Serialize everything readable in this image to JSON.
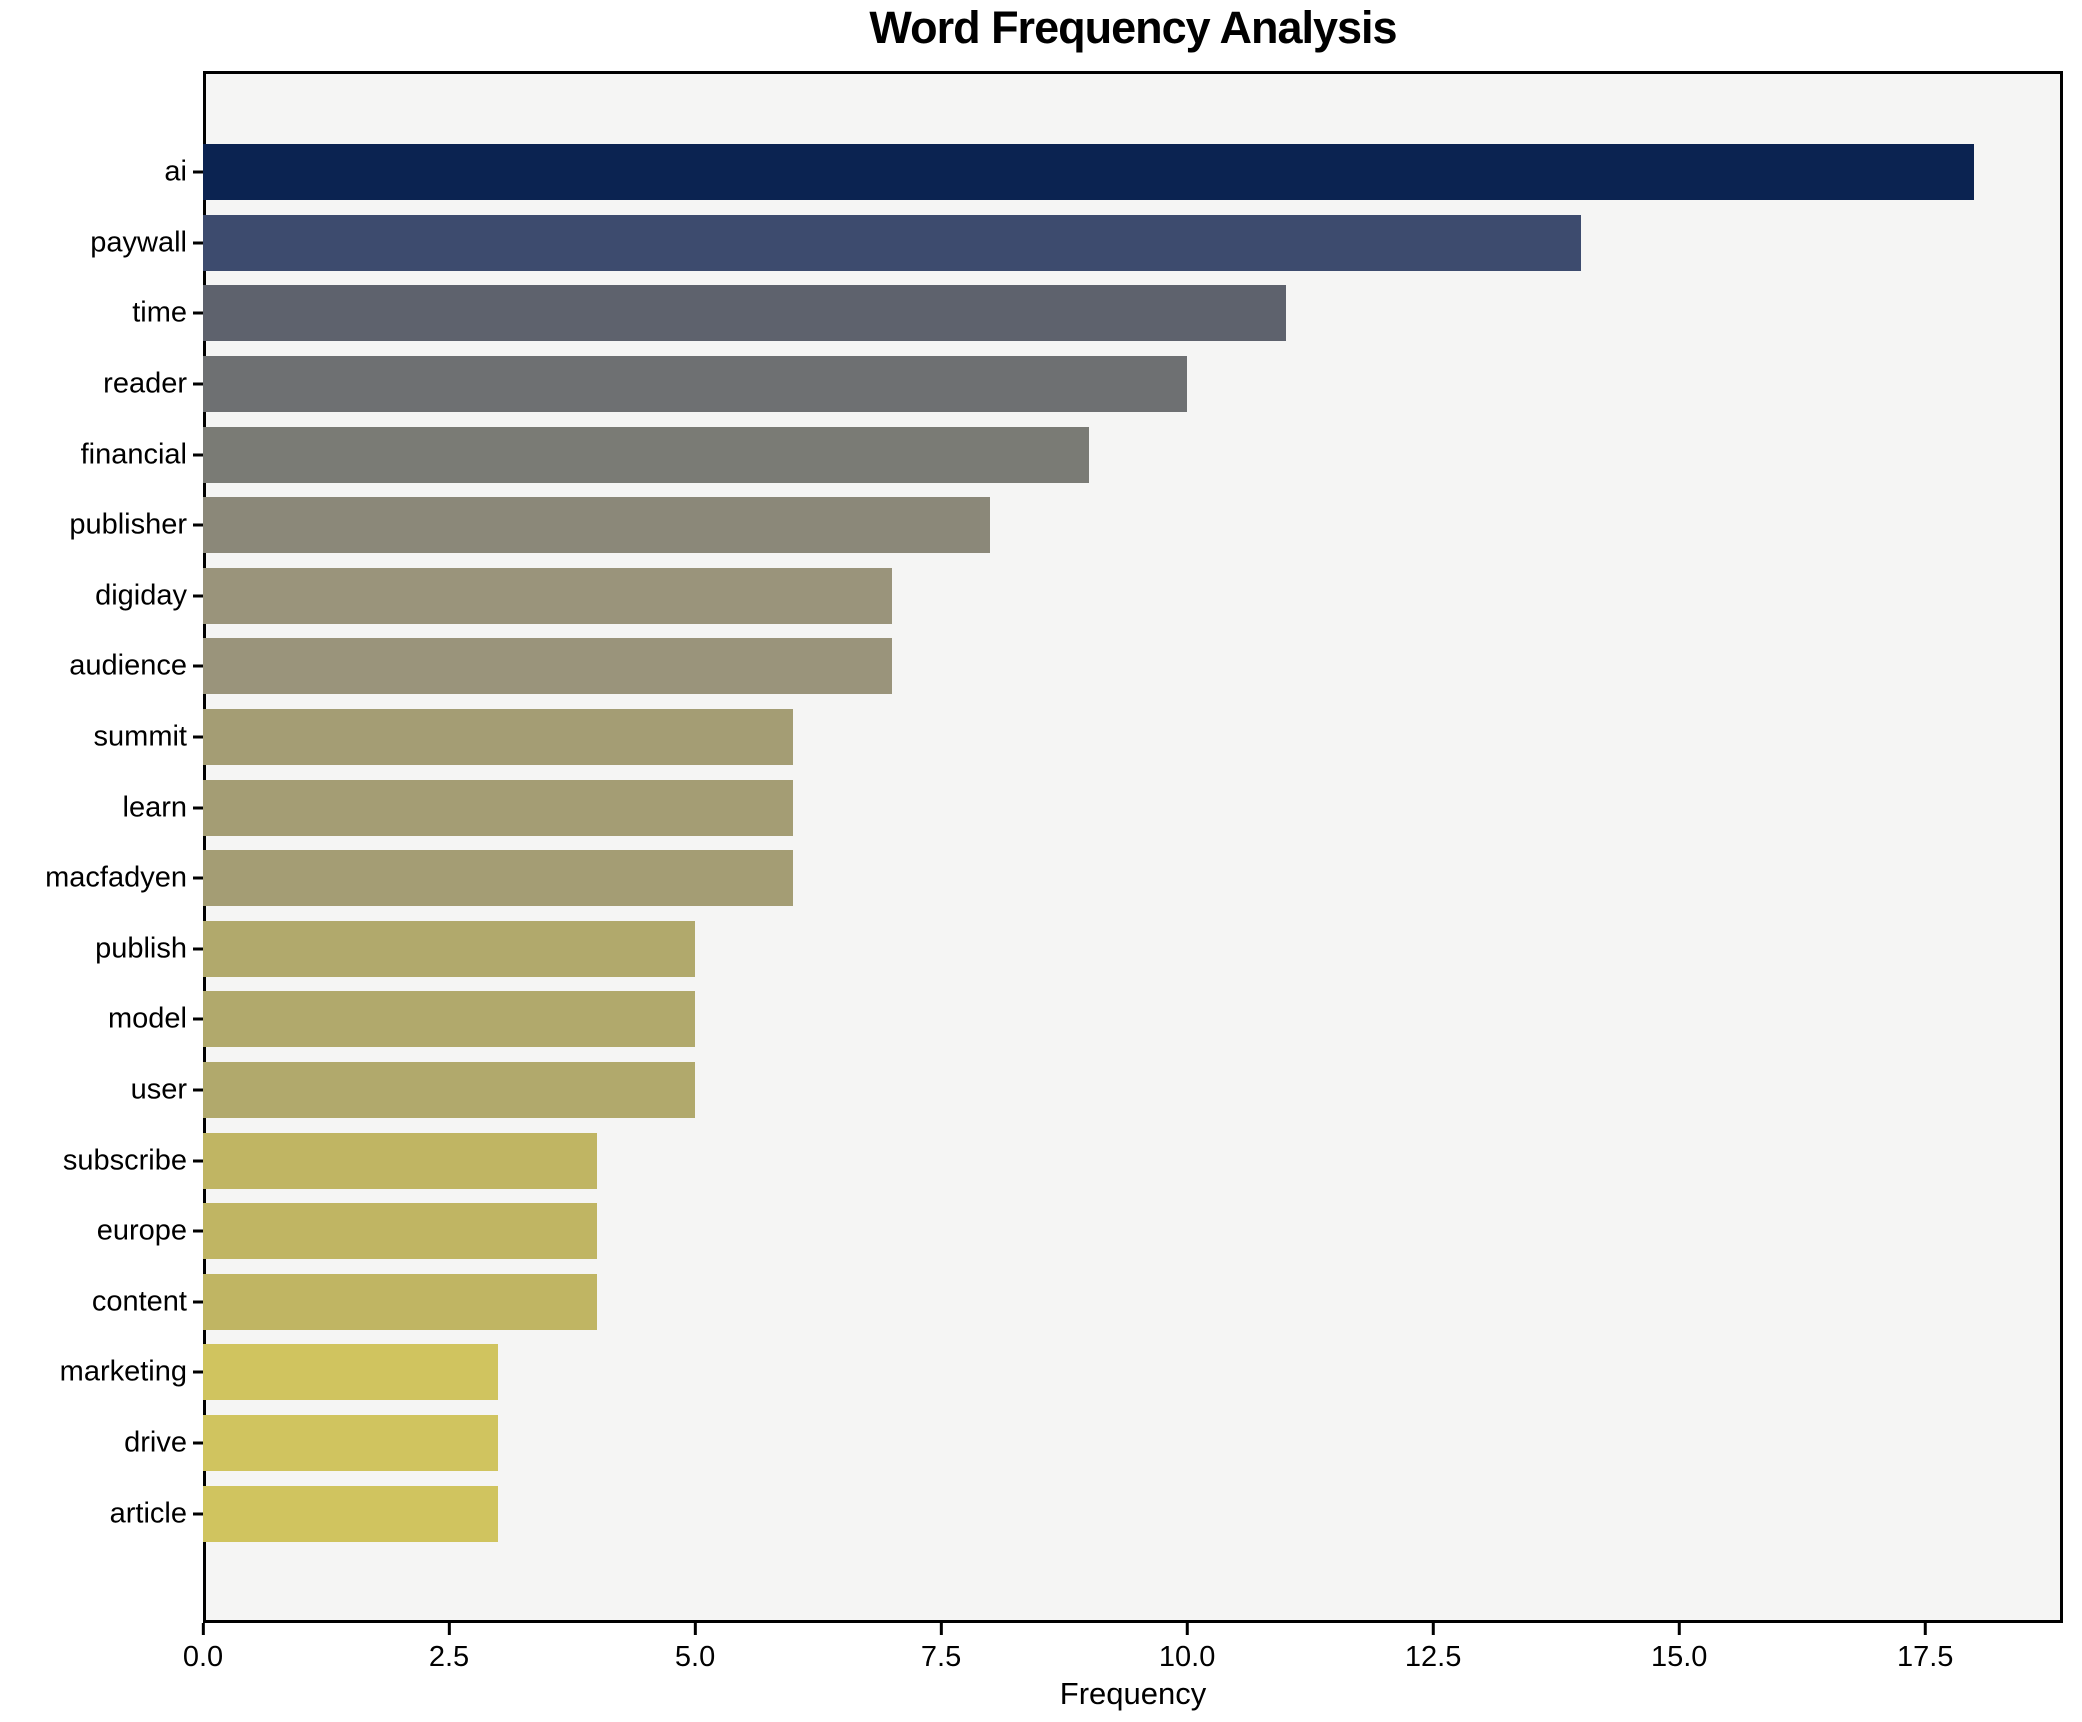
{
  "title": "Word Frequency Analysis",
  "chart_data": {
    "type": "bar",
    "orientation": "horizontal",
    "title": "Word Frequency Analysis",
    "xlabel": "Frequency",
    "ylabel": "",
    "categories": [
      "ai",
      "paywall",
      "time",
      "reader",
      "financial",
      "publisher",
      "digiday",
      "audience",
      "summit",
      "learn",
      "macfadyen",
      "publish",
      "model",
      "user",
      "subscribe",
      "europe",
      "content",
      "marketing",
      "drive",
      "article"
    ],
    "values": [
      18,
      14,
      11,
      10,
      9,
      8,
      7,
      7,
      6,
      6,
      6,
      5,
      5,
      5,
      4,
      4,
      4,
      3,
      3,
      3
    ],
    "bar_colors": [
      "#0b2351",
      "#3d4b6e",
      "#5e626d",
      "#6e7072",
      "#7a7b75",
      "#8b8879",
      "#9a947b",
      "#9a947b",
      "#a49d74",
      "#a49d74",
      "#a49d74",
      "#b1a96c",
      "#b1a96c",
      "#b1a96c",
      "#c0b563",
      "#c0b563",
      "#c0b563",
      "#d0c45f",
      "#d0c45f",
      "#d0c45f"
    ],
    "xlim": [
      0,
      18.9
    ],
    "xticks": [
      0,
      2.5,
      5,
      7.5,
      10,
      12.5,
      15,
      17.5
    ],
    "xtick_labels": [
      "0.0",
      "2.5",
      "5.0",
      "7.5",
      "10.0",
      "12.5",
      "15.0",
      "17.5"
    ],
    "grid": false,
    "legend": null,
    "plot_background": "#f5f5f4",
    "figure_background": "#ffffff",
    "colormap": "cividis"
  }
}
